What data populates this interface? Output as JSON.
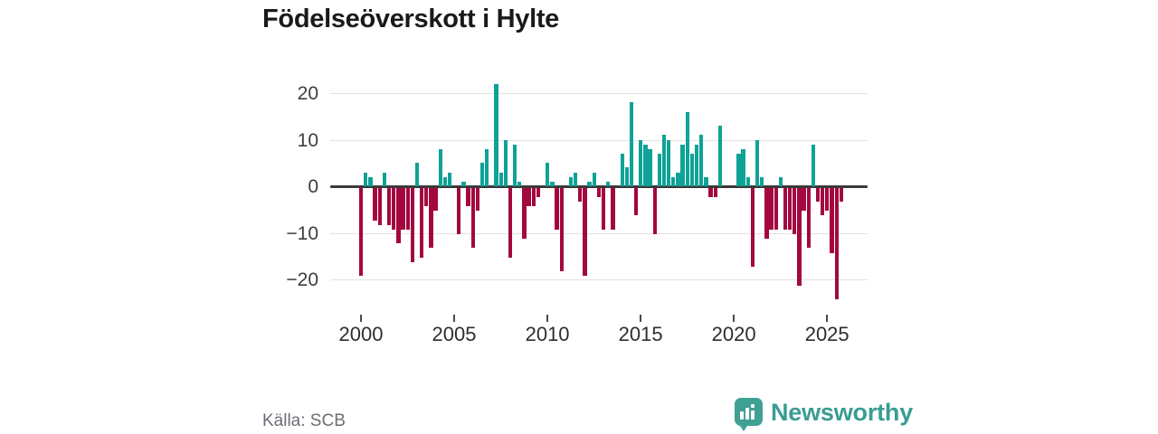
{
  "title": "Födelseöverskott i Hylte",
  "source": "Källa: SCB",
  "branding": {
    "logo_text": "Newsworthy",
    "logo_icon": "bar-chart-speech-bubble-icon"
  },
  "chart_data": {
    "type": "bar",
    "title": "Födelseöverskott i Hylte",
    "frequency": "quarterly",
    "x_start_year": 2000,
    "x_tick_years": [
      2000,
      2005,
      2010,
      2015,
      2020,
      2025
    ],
    "y_ticks": [
      20,
      10,
      0,
      -10,
      -20
    ],
    "ylim": [
      -25.5,
      23.6
    ],
    "grid": true,
    "legend": false,
    "colors": {
      "positive": "#0fa296",
      "negative": "#a40740",
      "axis": "#3a3a3a",
      "gridline": "#e2e2e2"
    },
    "values": [
      -19,
      3,
      2,
      -7,
      -8,
      3,
      -8,
      -9,
      -12,
      -9,
      -9,
      -16,
      5,
      -15,
      -4,
      -13,
      -5,
      8,
      2,
      3,
      0,
      -10,
      1,
      -4,
      -13,
      -5,
      5,
      8,
      0,
      22,
      3,
      10,
      -15,
      9,
      1,
      -11,
      -4,
      -4,
      -2,
      0,
      5,
      1,
      -9,
      -18,
      0,
      2,
      3,
      -3,
      -19,
      1,
      3,
      -2,
      -9,
      1,
      -9,
      0,
      7,
      4,
      18,
      -6,
      10,
      9,
      8,
      -10,
      7,
      11,
      10,
      2,
      3,
      9,
      16,
      7,
      9,
      11,
      2,
      -2,
      -2,
      13,
      0,
      0,
      0,
      7,
      8,
      2,
      -17,
      10,
      2,
      -11,
      -9,
      -9,
      2,
      -9,
      -9,
      -10,
      -21,
      -5,
      -13,
      9,
      -3,
      -6,
      -5,
      -14,
      -24,
      -3
    ]
  }
}
